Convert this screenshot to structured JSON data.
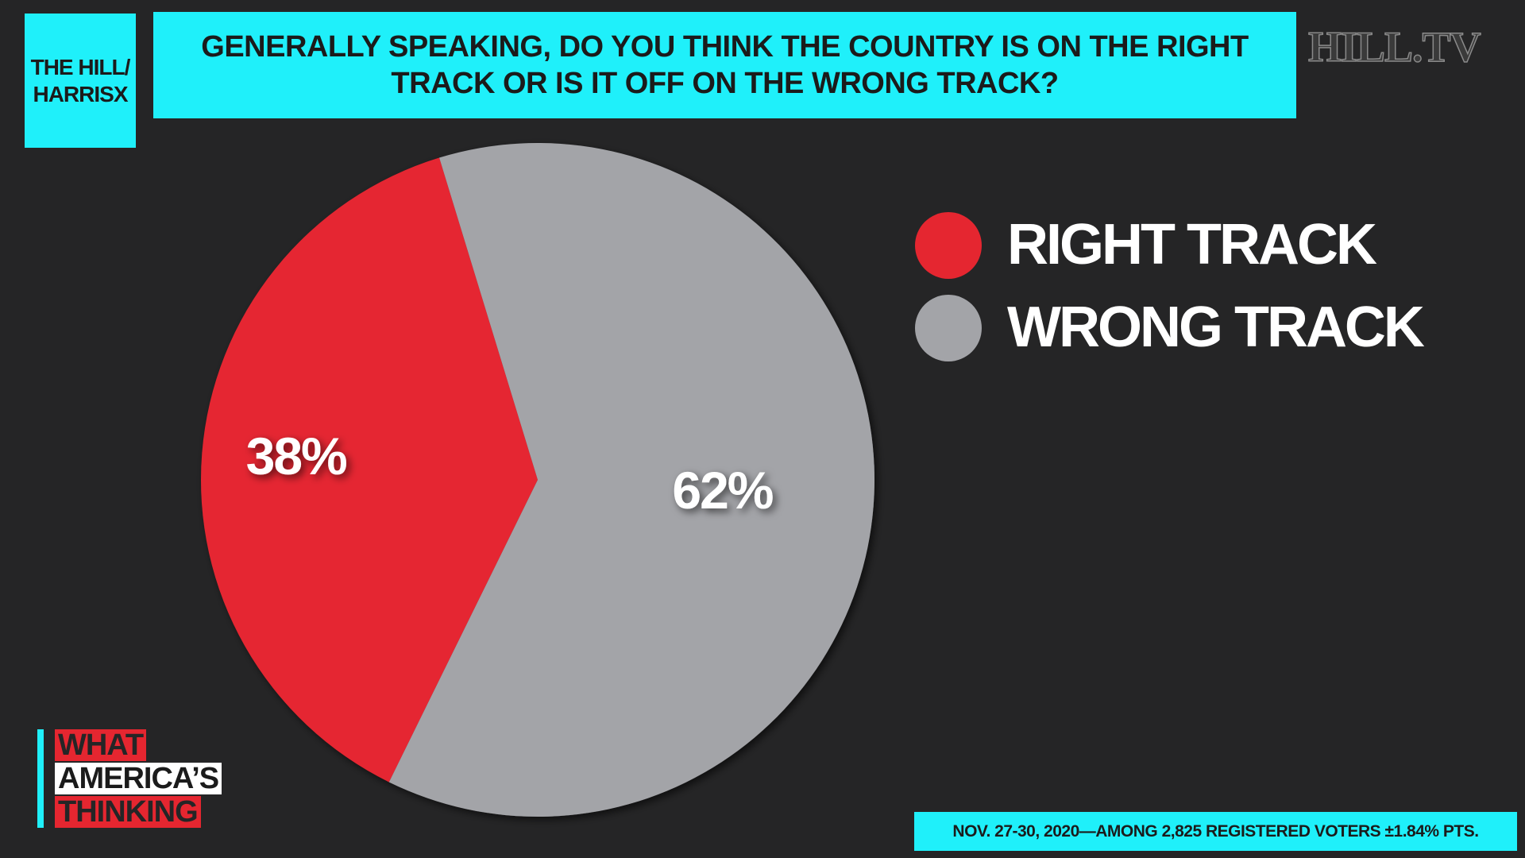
{
  "chart_data": {
    "type": "pie",
    "title": "GENERALLY SPEAKING, DO YOU THINK THE COUNTRY IS ON THE RIGHT TRACK OR IS IT OFF ON THE WRONG TRACK?",
    "categories": [
      "RIGHT TRACK",
      "WRONG TRACK"
    ],
    "values": [
      38,
      62
    ],
    "value_labels": [
      "38%",
      "62%"
    ],
    "colors": [
      "#e52630",
      "#a3a4a8"
    ]
  },
  "branding": {
    "poll": [
      "THE HILL/",
      "HARRISX"
    ],
    "network": "HILL.TV",
    "show": [
      "WHAT",
      "AMERICA’S",
      "THINKING"
    ]
  },
  "footnote": "NOV. 27-30, 2020—AMONG 2,825 REGISTERED VOTERS ±1.84% PTS."
}
